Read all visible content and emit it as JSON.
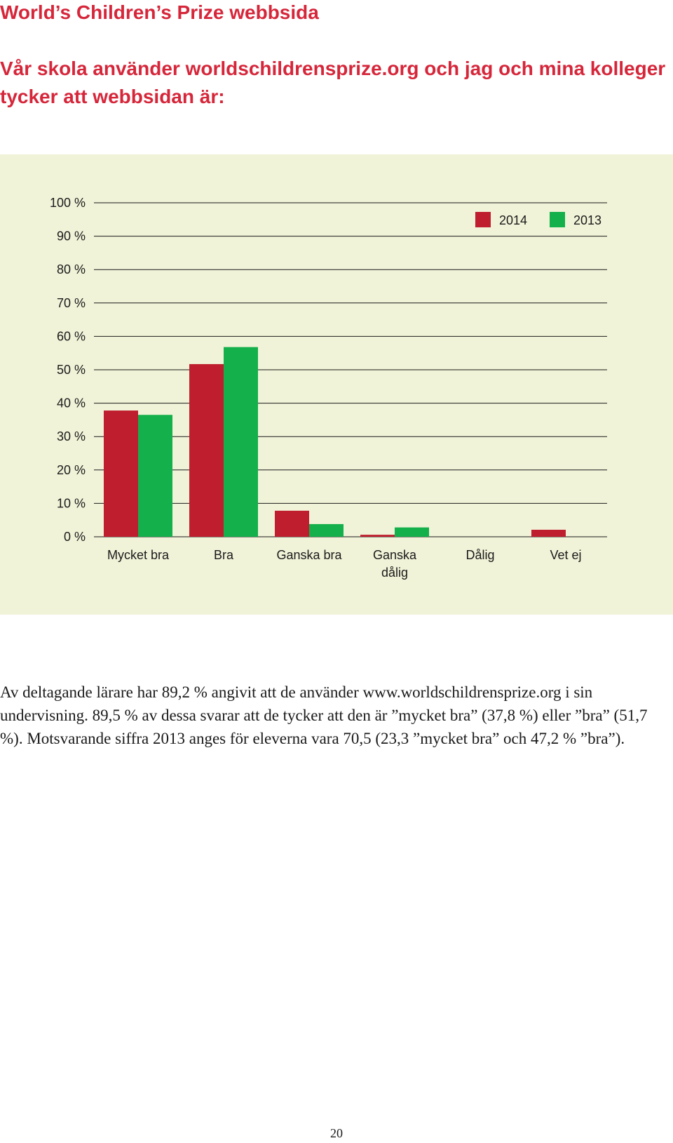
{
  "page": {
    "title": "World’s Children’s Prize webbsida",
    "subtitle": "Vår skola använder worldschildrensprize.org och jag och mina kolleger tycker att webbsidan är:",
    "body_text": "Av deltagande lärare har 89,2 % angivit att de använder www.worldschildrensprize.org i sin undervisning. 89,5 % av dessa svarar att de tycker att den är ”mycket bra” (37,8 %) eller ”bra” (51,7 %). Motsvarande siffra 2013 anges för eleverna vara 70,5 (23,3 ”mycket bra” och 47,2 % ”bra”).",
    "page_number": "20"
  },
  "colors": {
    "title": "#d6263a",
    "panel_background": "#f1f3d8",
    "series_2014": "#be1e2d",
    "series_2013": "#14b04b",
    "gridline": "#1a1a1a"
  },
  "chart_data": {
    "type": "bar",
    "categories": [
      [
        "Mycket bra"
      ],
      [
        "Bra"
      ],
      [
        "Ganska bra"
      ],
      [
        "Ganska",
        "dålig"
      ],
      [
        "Dålig"
      ],
      [
        "Vet ej"
      ]
    ],
    "y_ticks": [
      {
        "value": 0,
        "label": "0 %"
      },
      {
        "value": 10,
        "label": "10 %"
      },
      {
        "value": 20,
        "label": "20 %"
      },
      {
        "value": 30,
        "label": "30 %"
      },
      {
        "value": 40,
        "label": "40 %"
      },
      {
        "value": 50,
        "label": "50 %"
      },
      {
        "value": 60,
        "label": "60 %"
      },
      {
        "value": 70,
        "label": "70 %"
      },
      {
        "value": 80,
        "label": "80 %"
      },
      {
        "value": 90,
        "label": "90 %"
      },
      {
        "value": 100,
        "label": "100 %"
      }
    ],
    "ylim": [
      0,
      100
    ],
    "grid": true,
    "legend_position": "top-right",
    "series": [
      {
        "name": "2014",
        "color": "#be1e2d",
        "values": [
          37.8,
          51.7,
          7.8,
          0.6,
          0,
          2.1
        ]
      },
      {
        "name": "2013",
        "color": "#14b04b",
        "values": [
          36.5,
          56.8,
          3.8,
          2.8,
          0,
          0
        ]
      }
    ]
  }
}
